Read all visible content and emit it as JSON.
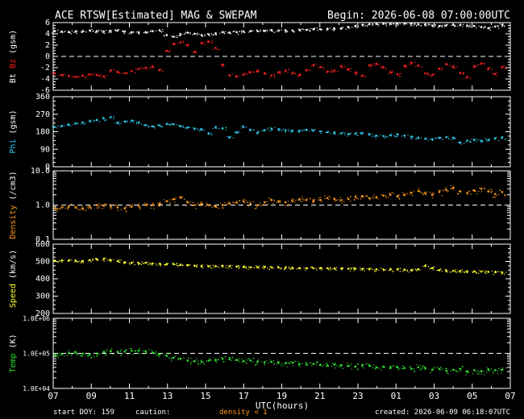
{
  "header": {
    "title": "ACE RTSW[Estimated] MAG & SWEPAM",
    "begin": "Begin: 2026-06-08 07:00:00UTC"
  },
  "footer": {
    "start_doy": "start DOY: 159",
    "caution": "caution:",
    "density_note": "density < 1",
    "created": "created: 2026-06-09 06:18:07UTC"
  },
  "colors": {
    "bt": "#ffffff",
    "bz": "#ff2020",
    "phi": "#30c8e8",
    "density": "#ff9a1a",
    "speed": "#ffff30",
    "temp": "#30e030",
    "axes": "#ffffff",
    "background": "#000000"
  },
  "chart_data": {
    "type": "scatter",
    "xlabel": "UTC(hours)",
    "x_tick_labels": [
      "07",
      "09",
      "11",
      "13",
      "15",
      "17",
      "19",
      "21",
      "23",
      "01",
      "03",
      "05",
      "07"
    ],
    "panels": [
      {
        "id": "mag",
        "ylabel_parts": [
          "Bt",
          "Bz",
          "(gsm)"
        ],
        "ylim": [
          -6,
          6
        ],
        "yticks": [
          "6",
          "4",
          "2",
          "0",
          "-2",
          "-4",
          "-6"
        ],
        "scale": "linear",
        "dashed_line": 0,
        "series": [
          {
            "name": "Bt",
            "color_key": "bt",
            "values": [
              4.5,
              4.4,
              4.3,
              4.4,
              4.5,
              4.6,
              4.5,
              4.4,
              4.5,
              4.6,
              4.4,
              4.3,
              4.2,
              4.3,
              4.5,
              4.6,
              3.8,
              3.5,
              3.9,
              4.2,
              4.0,
              3.8,
              3.9,
              4.1,
              4.3,
              4.2,
              4.3,
              4.4,
              4.5,
              4.5,
              4.5,
              4.6,
              4.6,
              4.6,
              4.6,
              4.7,
              4.7,
              4.8,
              4.8,
              4.9,
              4.9,
              5.0,
              5.2,
              5.4,
              5.6,
              5.7,
              5.8,
              5.8,
              5.8,
              5.9,
              5.9,
              5.8,
              5.7,
              5.7,
              5.5,
              5.4,
              5.5,
              5.6,
              5.6,
              5.5,
              5.4,
              5.2,
              5.0,
              5.3,
              5.6
            ]
          },
          {
            "name": "Bz",
            "color_key": "bz",
            "values": [
              -3.0,
              -3.3,
              -3.5,
              -3.6,
              -3.4,
              -3.2,
              -3.3,
              -3.5,
              -2.5,
              -2.8,
              -3.0,
              -2.6,
              -2.2,
              -2.0,
              -1.8,
              -2.4,
              1.0,
              2.2,
              2.5,
              2.0,
              0.8,
              2.4,
              2.6,
              1.5,
              -1.5,
              -3.4,
              -3.6,
              -3.2,
              -2.8,
              -2.6,
              -3.0,
              -3.4,
              -2.8,
              -2.5,
              -2.9,
              -3.3,
              -2.4,
              -1.6,
              -1.9,
              -2.7,
              -2.5,
              -1.8,
              -2.3,
              -2.9,
              -3.4,
              -1.6,
              -1.3,
              -1.9,
              -2.8,
              -3.2,
              -1.7,
              -1.1,
              -1.6,
              -3.0,
              -3.3,
              -2.2,
              -1.4,
              -1.8,
              -2.9,
              -3.6,
              -1.7,
              -1.3,
              -2.2,
              -3.1,
              -1.9
            ]
          }
        ]
      },
      {
        "id": "phi",
        "ylabel_parts": [
          "Phi",
          "(gsm)"
        ],
        "ylim": [
          0,
          360
        ],
        "yticks": [
          "360",
          "270",
          "180",
          "90",
          "0"
        ],
        "scale": "linear",
        "series": [
          {
            "name": "Phi",
            "color_key": "phi",
            "values": [
              205,
              210,
              215,
              222,
              228,
              235,
              240,
              248,
              255,
              225,
              232,
              238,
              226,
              214,
              208,
              212,
              220,
              218,
              208,
              202,
              196,
              192,
              170,
              205,
              198,
              150,
              175,
              205,
              190,
              175,
              188,
              196,
              192,
              188,
              186,
              184,
              190,
              186,
              182,
              178,
              176,
              172,
              168,
              170,
              174,
              166,
              160,
              158,
              162,
              165,
              160,
              155,
              150,
              145,
              142,
              148,
              152,
              150,
              125,
              135,
              140,
              132,
              138,
              145,
              150
            ]
          }
        ]
      },
      {
        "id": "density",
        "ylabel_parts": [
          "Density",
          "(/cm3)"
        ],
        "ylim": [
          0.1,
          10
        ],
        "yticks": [
          "10.0",
          "1.0",
          "0.1"
        ],
        "scale": "log",
        "dashed_line": 1.0,
        "series": [
          {
            "name": "Density",
            "color_key": "density",
            "values": [
              0.8,
              0.85,
              0.9,
              0.85,
              0.8,
              0.9,
              1.0,
              0.95,
              0.9,
              0.85,
              0.8,
              0.9,
              0.95,
              1.0,
              1.0,
              1.1,
              1.3,
              1.5,
              1.7,
              1.2,
              1.0,
              1.1,
              1.0,
              0.9,
              1.0,
              1.1,
              1.2,
              1.3,
              1.1,
              1.0,
              1.2,
              1.4,
              1.3,
              1.2,
              1.3,
              1.5,
              1.4,
              1.3,
              1.4,
              1.6,
              1.5,
              1.4,
              1.5,
              1.7,
              1.8,
              1.6,
              1.7,
              1.9,
              2.0,
              1.8,
              2.0,
              2.3,
              2.6,
              2.2,
              2.0,
              2.4,
              2.8,
              3.2,
              2.5,
              2.2,
              2.7,
              3.0,
              2.5,
              2.1,
              2.4
            ]
          }
        ]
      },
      {
        "id": "speed",
        "ylabel_parts": [
          "Speed",
          "(km/s)"
        ],
        "ylim": [
          200,
          600
        ],
        "yticks": [
          "600",
          "500",
          "400",
          "300",
          "200"
        ],
        "scale": "linear",
        "series": [
          {
            "name": "Speed",
            "color_key": "speed",
            "values": [
              505,
              506,
              505,
              504,
              503,
              508,
              512,
              515,
              508,
              502,
              496,
              492,
              490,
              492,
              489,
              487,
              485,
              484,
              480,
              478,
              476,
              474,
              472,
              473,
              474,
              472,
              470,
              468,
              466,
              467,
              468,
              466,
              465,
              464,
              464,
              463,
              462,
              461,
              462,
              461,
              460,
              459,
              458,
              458,
              457,
              456,
              455,
              454,
              454,
              455,
              453,
              450,
              456,
              475,
              462,
              450,
              448,
              446,
              445,
              444,
              443,
              442,
              440,
              438,
              436
            ]
          }
        ]
      },
      {
        "id": "temp",
        "ylabel_parts": [
          "Temp",
          "(K)"
        ],
        "ylim": [
          10000,
          1000000
        ],
        "yticks": [
          "1.0E+06",
          "1.0E+05",
          "1.0E+04"
        ],
        "scale": "log",
        "dashed_line": 100000,
        "series": [
          {
            "name": "Temp",
            "color_key": "temp",
            "values": [
              90000,
              95000,
              100000,
              105000,
              98000,
              92000,
              100000,
              110000,
              115000,
              108000,
              112000,
              118000,
              120000,
              115000,
              105000,
              95000,
              85000,
              75000,
              70000,
              62000,
              60000,
              58000,
              62000,
              65000,
              70000,
              68000,
              65000,
              60000,
              62000,
              58000,
              55000,
              57000,
              55000,
              52000,
              54000,
              50000,
              48000,
              50000,
              47000,
              45000,
              48000,
              46000,
              44000,
              42000,
              46000,
              44000,
              40000,
              42000,
              38000,
              40000,
              38000,
              36000,
              40000,
              38000,
              34000,
              36000,
              32000,
              34000,
              36000,
              30000,
              33000,
              31000,
              35000,
              33000,
              34000
            ]
          }
        ]
      }
    ]
  }
}
